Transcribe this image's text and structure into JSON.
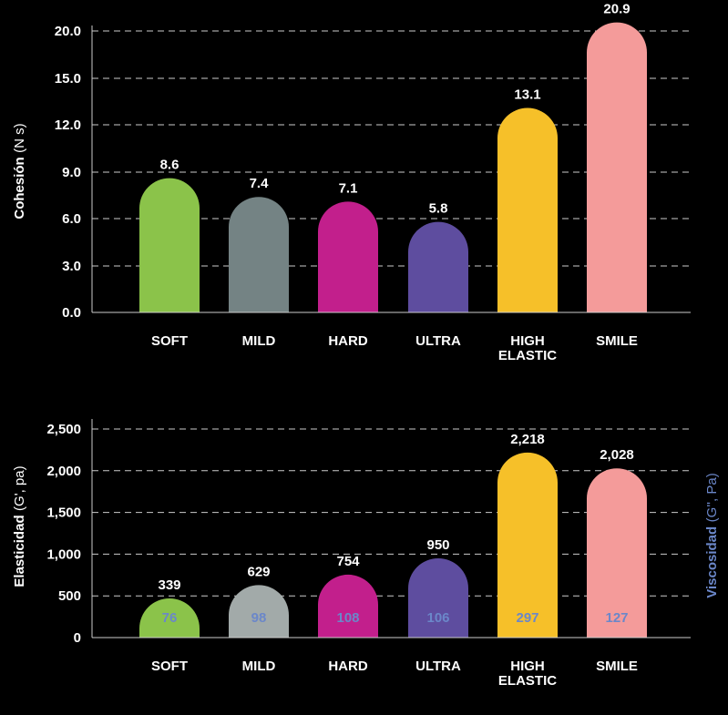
{
  "colors": {
    "background": "#000000",
    "text": "#ffffff",
    "grid": "#cccccc",
    "axis": "#cccccc",
    "viscosity_text": "#6b87c9"
  },
  "chart_data": [
    {
      "type": "bar",
      "ylabel_bold": "Cohesión",
      "ylabel_unit": "(N s)",
      "y_ticks": [
        "0.0",
        "3.0",
        "6.0",
        "9.0",
        "12.0",
        "15.0",
        "20.0"
      ],
      "ylim": [
        0,
        21.5
      ],
      "grid": true,
      "categories": [
        [
          "SOFT"
        ],
        [
          "MILD"
        ],
        [
          "HARD"
        ],
        [
          "ULTRA"
        ],
        [
          "HIGH",
          "ELASTIC"
        ],
        [
          "SMILE"
        ]
      ],
      "values": [
        8.6,
        7.4,
        7.1,
        5.8,
        13.1,
        20.9
      ],
      "value_labels": [
        "8.6",
        "7.4",
        "7.1",
        "5.8",
        "13.1",
        "20.9"
      ],
      "bar_colors": [
        "#8bc34a",
        "#748384",
        "#c21f8c",
        "#5e4d9f",
        "#f6c029",
        "#f49b9a"
      ]
    },
    {
      "type": "bar",
      "ylabel_bold": "Elasticidad",
      "ylabel_unit": "(G', pa)",
      "y2label_bold": "Viscosidad",
      "y2label_unit": "(G'', Pa)",
      "y_ticks": [
        "0",
        "500",
        "1,000",
        "1,500",
        "2,000",
        "2,500"
      ],
      "ylim": [
        0,
        2700
      ],
      "grid": true,
      "categories": [
        [
          "SOFT"
        ],
        [
          "MILD"
        ],
        [
          "HARD"
        ],
        [
          "ULTRA"
        ],
        [
          "HIGH",
          "ELASTIC"
        ],
        [
          "SMILE"
        ]
      ],
      "series": [
        {
          "name": "Elasticidad",
          "values": [
            339,
            629,
            754,
            950,
            2218,
            2028
          ],
          "value_labels": [
            "339",
            "629",
            "754",
            "950",
            "2,218",
            "2,028"
          ]
        },
        {
          "name": "Viscosidad",
          "values": [
            76,
            98,
            108,
            106,
            297,
            127
          ],
          "value_labels": [
            "76",
            "98",
            "108",
            "106",
            "297",
            "127"
          ]
        }
      ],
      "bar_colors": [
        "#8bc34a",
        "#a2aaa9",
        "#c21f8c",
        "#5e4d9f",
        "#f6c029",
        "#f49b9a"
      ]
    }
  ]
}
